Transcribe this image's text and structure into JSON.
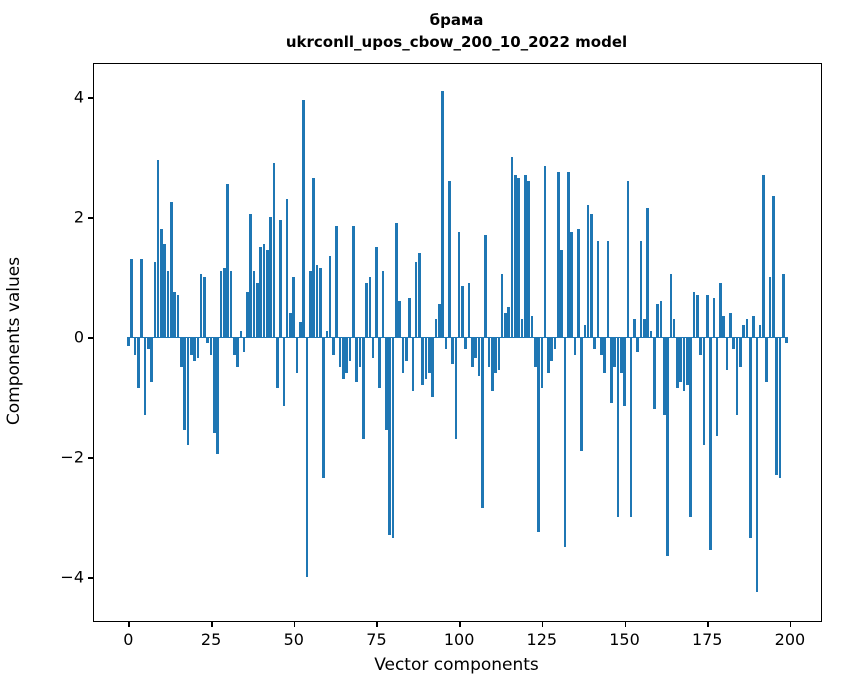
{
  "title": {
    "line1": "брама",
    "line2": "ukrconll_upos_cbow_200_10_2022 model"
  },
  "chart_data": {
    "type": "bar",
    "title": "брама",
    "subtitle": "ukrconll_upos_cbow_200_10_2022 model",
    "xlabel": "Vector components",
    "ylabel": "Components values",
    "bar_color": "#1f77b4",
    "grid": false,
    "legend": "none",
    "xlim": [
      -10.4,
      209.4
    ],
    "ylim": [
      -4.73,
      4.55
    ],
    "xticks": [
      0,
      25,
      50,
      75,
      100,
      125,
      150,
      175,
      200
    ],
    "yticks": [
      -4,
      -2,
      0,
      2,
      4
    ],
    "x_start": 0,
    "bar_width": 0.8,
    "values": [
      -0.15,
      1.3,
      -0.3,
      -0.85,
      1.3,
      -1.3,
      -0.2,
      -0.75,
      1.25,
      2.95,
      1.8,
      1.55,
      1.1,
      2.25,
      0.75,
      0.7,
      -0.5,
      -1.55,
      -1.8,
      -0.3,
      -0.4,
      -0.35,
      1.05,
      1.0,
      -0.1,
      -0.3,
      -1.6,
      -1.95,
      1.1,
      1.15,
      2.55,
      1.1,
      -0.3,
      -0.5,
      0.1,
      -0.25,
      0.75,
      2.05,
      1.1,
      0.9,
      1.5,
      1.55,
      1.45,
      2.0,
      2.9,
      -0.85,
      1.95,
      -1.15,
      2.3,
      0.4,
      1.0,
      -0.6,
      0.25,
      3.95,
      -4.0,
      1.1,
      2.65,
      1.2,
      1.15,
      -2.35,
      0.1,
      1.35,
      -0.3,
      1.85,
      -0.5,
      -0.7,
      -0.6,
      -0.4,
      1.85,
      -0.75,
      -0.5,
      -1.7,
      0.9,
      1.0,
      -0.35,
      1.5,
      -0.85,
      1.1,
      -1.55,
      -3.3,
      -3.35,
      1.9,
      0.6,
      -0.6,
      -0.4,
      0.65,
      -0.9,
      1.25,
      1.4,
      -0.8,
      -0.7,
      -0.6,
      -1.0,
      0.3,
      0.55,
      4.1,
      -0.2,
      2.6,
      -0.45,
      -1.7,
      1.75,
      0.85,
      -0.2,
      0.9,
      -0.5,
      -0.35,
      -0.65,
      -2.85,
      1.7,
      -0.5,
      -0.9,
      -0.6,
      -0.55,
      1.05,
      0.4,
      0.5,
      3.0,
      2.7,
      2.65,
      0.3,
      2.7,
      2.6,
      0.35,
      -0.5,
      -3.25,
      -0.85,
      2.85,
      -0.6,
      -0.4,
      -0.2,
      2.75,
      1.45,
      -3.5,
      2.75,
      1.75,
      -0.3,
      1.8,
      -1.9,
      0.2,
      2.2,
      2.05,
      -0.2,
      1.6,
      -0.3,
      -0.6,
      1.6,
      -1.1,
      -0.5,
      -3.0,
      -0.6,
      -1.15,
      2.6,
      -3.0,
      0.3,
      -0.25,
      1.6,
      0.3,
      2.15,
      0.1,
      -1.2,
      0.55,
      0.6,
      -1.3,
      -3.65,
      1.05,
      0.3,
      -0.85,
      -0.75,
      -0.9,
      -0.8,
      -3.0,
      0.75,
      0.7,
      -0.3,
      -1.8,
      0.7,
      -3.55,
      0.65,
      -1.65,
      0.9,
      0.35,
      -0.55,
      0.4,
      -0.2,
      -1.3,
      -0.5,
      0.2,
      0.3,
      -3.35,
      0.35,
      -4.25,
      0.2,
      2.7,
      -0.75,
      1.0,
      2.35,
      -2.3,
      -2.35,
      1.05,
      -0.1
    ]
  }
}
